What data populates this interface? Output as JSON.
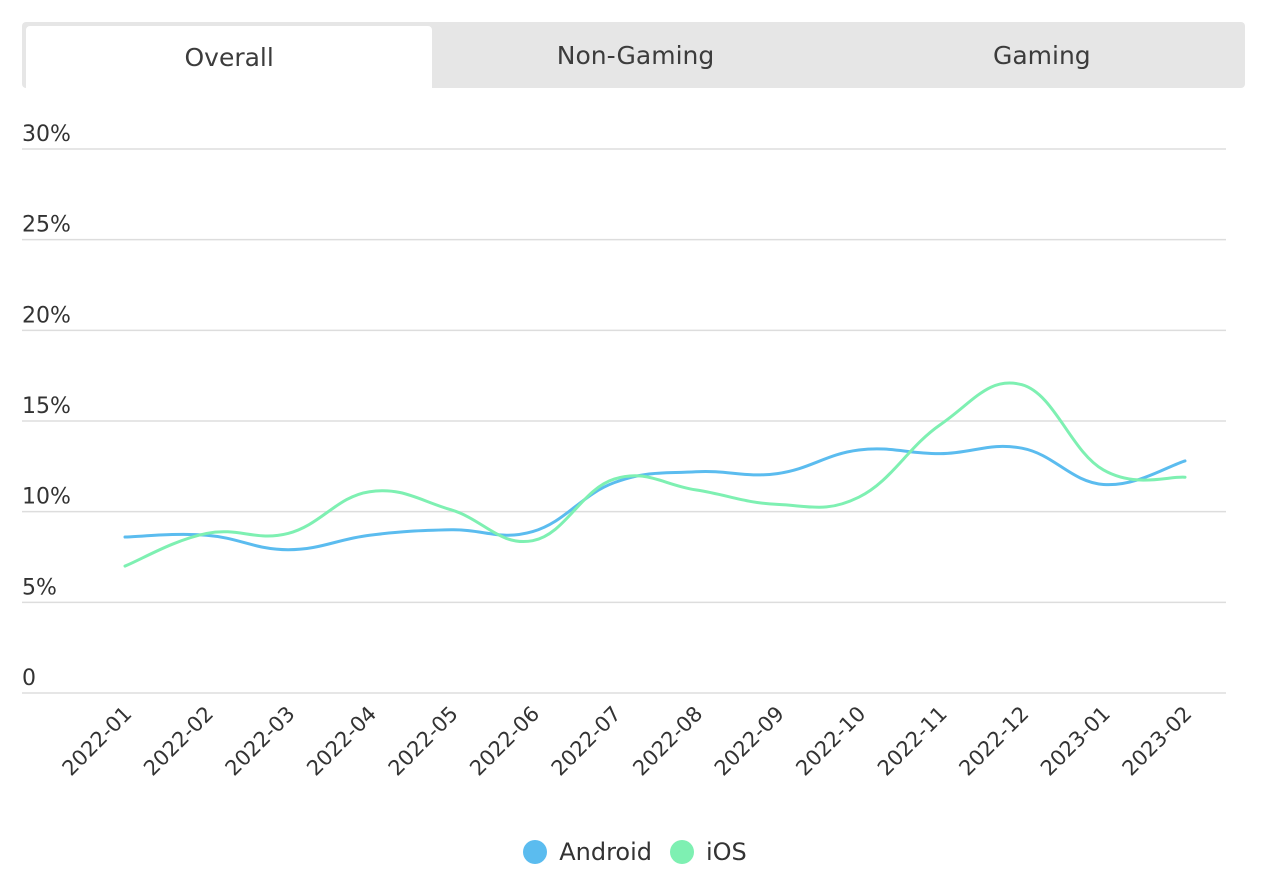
{
  "tabs": [
    {
      "label": "Overall",
      "active": true
    },
    {
      "label": "Non-Gaming",
      "active": false
    },
    {
      "label": "Gaming",
      "active": false
    }
  ],
  "colors": {
    "android": "#5bbcef",
    "ios": "#7ef0b2",
    "grid": "#dddddd"
  },
  "legend": {
    "android_label": "Android",
    "ios_label": "iOS"
  },
  "chart_data": {
    "type": "line",
    "y_tick_labels": [
      "0",
      "5%",
      "10%",
      "15%",
      "20%",
      "25%",
      "30%"
    ],
    "y_ticks": [
      0,
      5,
      10,
      15,
      20,
      25,
      30
    ],
    "ylim": [
      0,
      30
    ],
    "x": [
      "2022-01",
      "2022-02",
      "2022-03",
      "2022-04",
      "2022-05",
      "2022-06",
      "2022-07",
      "2022-08",
      "2022-09",
      "2022-10",
      "2022-11",
      "2022-12",
      "2023-01",
      "2023-02"
    ],
    "series": [
      {
        "name": "Android",
        "values": [
          8.6,
          8.7,
          7.9,
          8.7,
          9.0,
          8.9,
          11.6,
          12.2,
          12.1,
          13.4,
          13.2,
          13.5,
          11.5,
          12.8
        ]
      },
      {
        "name": "iOS",
        "values": [
          7.0,
          8.8,
          8.8,
          11.1,
          10.1,
          8.4,
          11.8,
          11.2,
          10.4,
          10.8,
          14.8,
          17.0,
          12.3,
          11.9
        ]
      }
    ],
    "grid": true,
    "legend_position": "bottom-center"
  }
}
